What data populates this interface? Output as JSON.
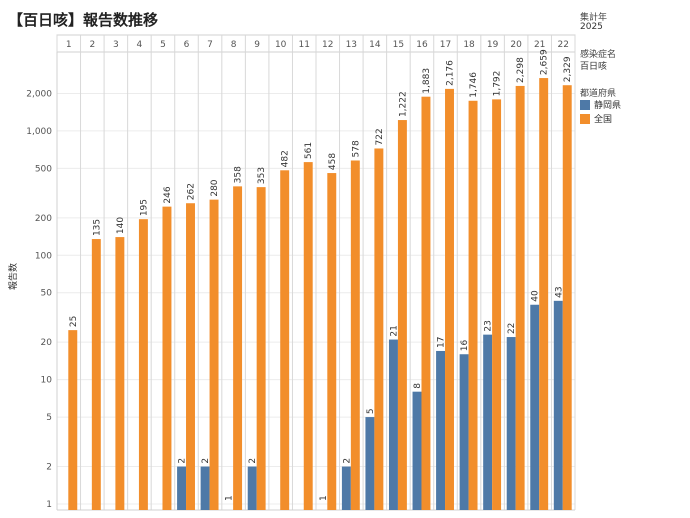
{
  "title": "【百日咳】報告数推移",
  "sidebar": {
    "year_label": "集計年",
    "year_value": "2025",
    "disease_label": "感染症名",
    "disease_value": "百日咳",
    "prefecture_label": "都道府県"
  },
  "colors": {
    "shizuoka": "#4e79a7",
    "national": "#f28e2b"
  },
  "chart_data": {
    "type": "bar",
    "ylabel": "報告数",
    "xlabel": "",
    "yscale": "log",
    "ylim": [
      1,
      4000
    ],
    "yticks": [
      1,
      2,
      5,
      10,
      20,
      50,
      100,
      200,
      500,
      1000,
      2000
    ],
    "ytick_labels": [
      "1",
      "2",
      "5",
      "10",
      "20",
      "50",
      "100",
      "200",
      "500",
      "1,000",
      "2,000"
    ],
    "categories": [
      "1",
      "2",
      "3",
      "4",
      "5",
      "6",
      "7",
      "8",
      "9",
      "10",
      "11",
      "12",
      "13",
      "14",
      "15",
      "16",
      "17",
      "18",
      "19",
      "20",
      "21",
      "22"
    ],
    "legend_position": "right",
    "series": [
      {
        "name": "静岡県",
        "values": [
          null,
          null,
          null,
          null,
          null,
          2,
          2,
          1,
          2,
          null,
          null,
          1,
          2,
          5,
          21,
          8,
          17,
          16,
          23,
          22,
          40,
          43
        ]
      },
      {
        "name": "全国",
        "values": [
          25,
          135,
          140,
          195,
          246,
          262,
          280,
          358,
          353,
          482,
          561,
          458,
          578,
          722,
          1222,
          1883,
          2176,
          1746,
          1792,
          2298,
          2659,
          2329
        ]
      }
    ]
  }
}
